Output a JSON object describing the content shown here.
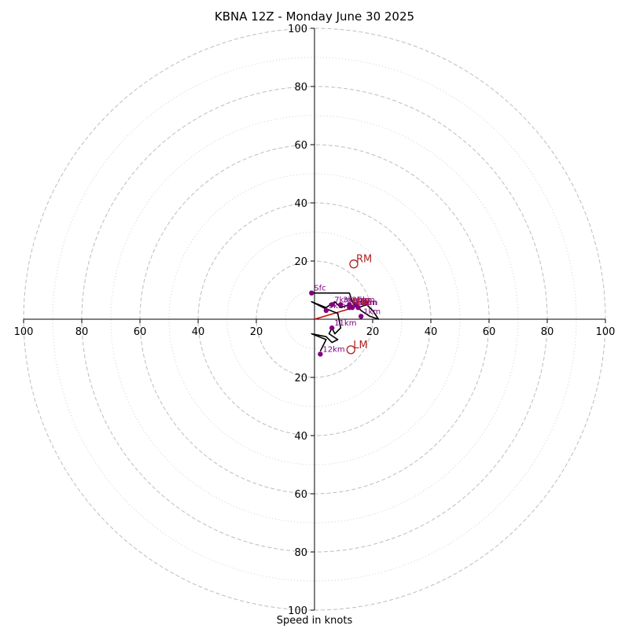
{
  "chart_data": {
    "type": "scatter",
    "subtype": "hodograph",
    "title": "KBNA 12Z - Monday June 30 2025",
    "xlabel": "Speed in knots",
    "ylabel": "",
    "xlim": [
      -100,
      100
    ],
    "ylim": [
      -100,
      100
    ],
    "units": "knots",
    "rings": {
      "major": [
        20,
        40,
        60,
        80,
        100
      ],
      "minor": [
        10,
        30,
        50,
        70,
        90
      ],
      "major_style": "dashed",
      "minor_style": "dotted"
    },
    "ticks": {
      "x_left": [
        "100",
        "80",
        "60",
        "40",
        "20"
      ],
      "x_right": [
        "20",
        "40",
        "60",
        "80",
        "100"
      ],
      "y_top": [
        "100",
        "80",
        "60",
        "40",
        "20"
      ],
      "y_bottom": [
        "20",
        "40",
        "60",
        "80",
        "100"
      ]
    },
    "trace": {
      "color": "#000000",
      "points": [
        [
          -1,
          9
        ],
        [
          12,
          9
        ],
        [
          13,
          6
        ],
        [
          16,
          3
        ],
        [
          19,
          1
        ],
        [
          22,
          0
        ],
        [
          20,
          3
        ],
        [
          18,
          5
        ],
        [
          15,
          4
        ],
        [
          12,
          5
        ],
        [
          9,
          4
        ],
        [
          7,
          6
        ],
        [
          4,
          4
        ],
        [
          -1,
          6
        ],
        [
          3,
          4
        ],
        [
          8,
          2
        ],
        [
          9,
          -3
        ],
        [
          7,
          -5
        ],
        [
          6,
          -3
        ],
        [
          5,
          -5
        ],
        [
          8,
          -7
        ],
        [
          6,
          -8
        ],
        [
          4,
          -6
        ],
        [
          -1,
          -5
        ],
        [
          4,
          -7
        ],
        [
          2,
          -11
        ]
      ]
    },
    "height_markers": [
      {
        "label": "Sfc",
        "x": -1,
        "y": 9
      },
      {
        "label": "1km",
        "x": 16,
        "y": 1
      },
      {
        "label": "2km",
        "x": 12,
        "y": 5
      },
      {
        "label": "3km",
        "x": 9,
        "y": 5
      },
      {
        "label": "4km",
        "x": 12,
        "y": 4
      },
      {
        "label": "5km",
        "x": 14,
        "y": 5
      },
      {
        "label": "6km",
        "x": 15,
        "y": 4
      },
      {
        "label": "7km",
        "x": 6,
        "y": 5
      },
      {
        "label": "9km",
        "x": 4,
        "y": 3
      },
      {
        "label": "10km",
        "x": 13,
        "y": 4
      },
      {
        "label": "11km",
        "x": 6,
        "y": -3
      },
      {
        "label": "12km",
        "x": 2,
        "y": -12
      }
    ],
    "motion_markers": [
      {
        "label": "RM",
        "x": 13.5,
        "y": 19,
        "color": "#b22222"
      },
      {
        "label": "LM",
        "x": 12.5,
        "y": -10.5,
        "color": "#b22222"
      },
      {
        "label": "MW",
        "x": 12,
        "y": 4,
        "color": "#b22222"
      }
    ],
    "shear_vector": {
      "from": [
        0,
        0
      ],
      "to": [
        13.5,
        4
      ],
      "color": "#cc0000"
    },
    "colors": {
      "axis": "#000000",
      "rings": "#bdbdbd",
      "markers": "#800080",
      "motion": "#b22222"
    }
  }
}
